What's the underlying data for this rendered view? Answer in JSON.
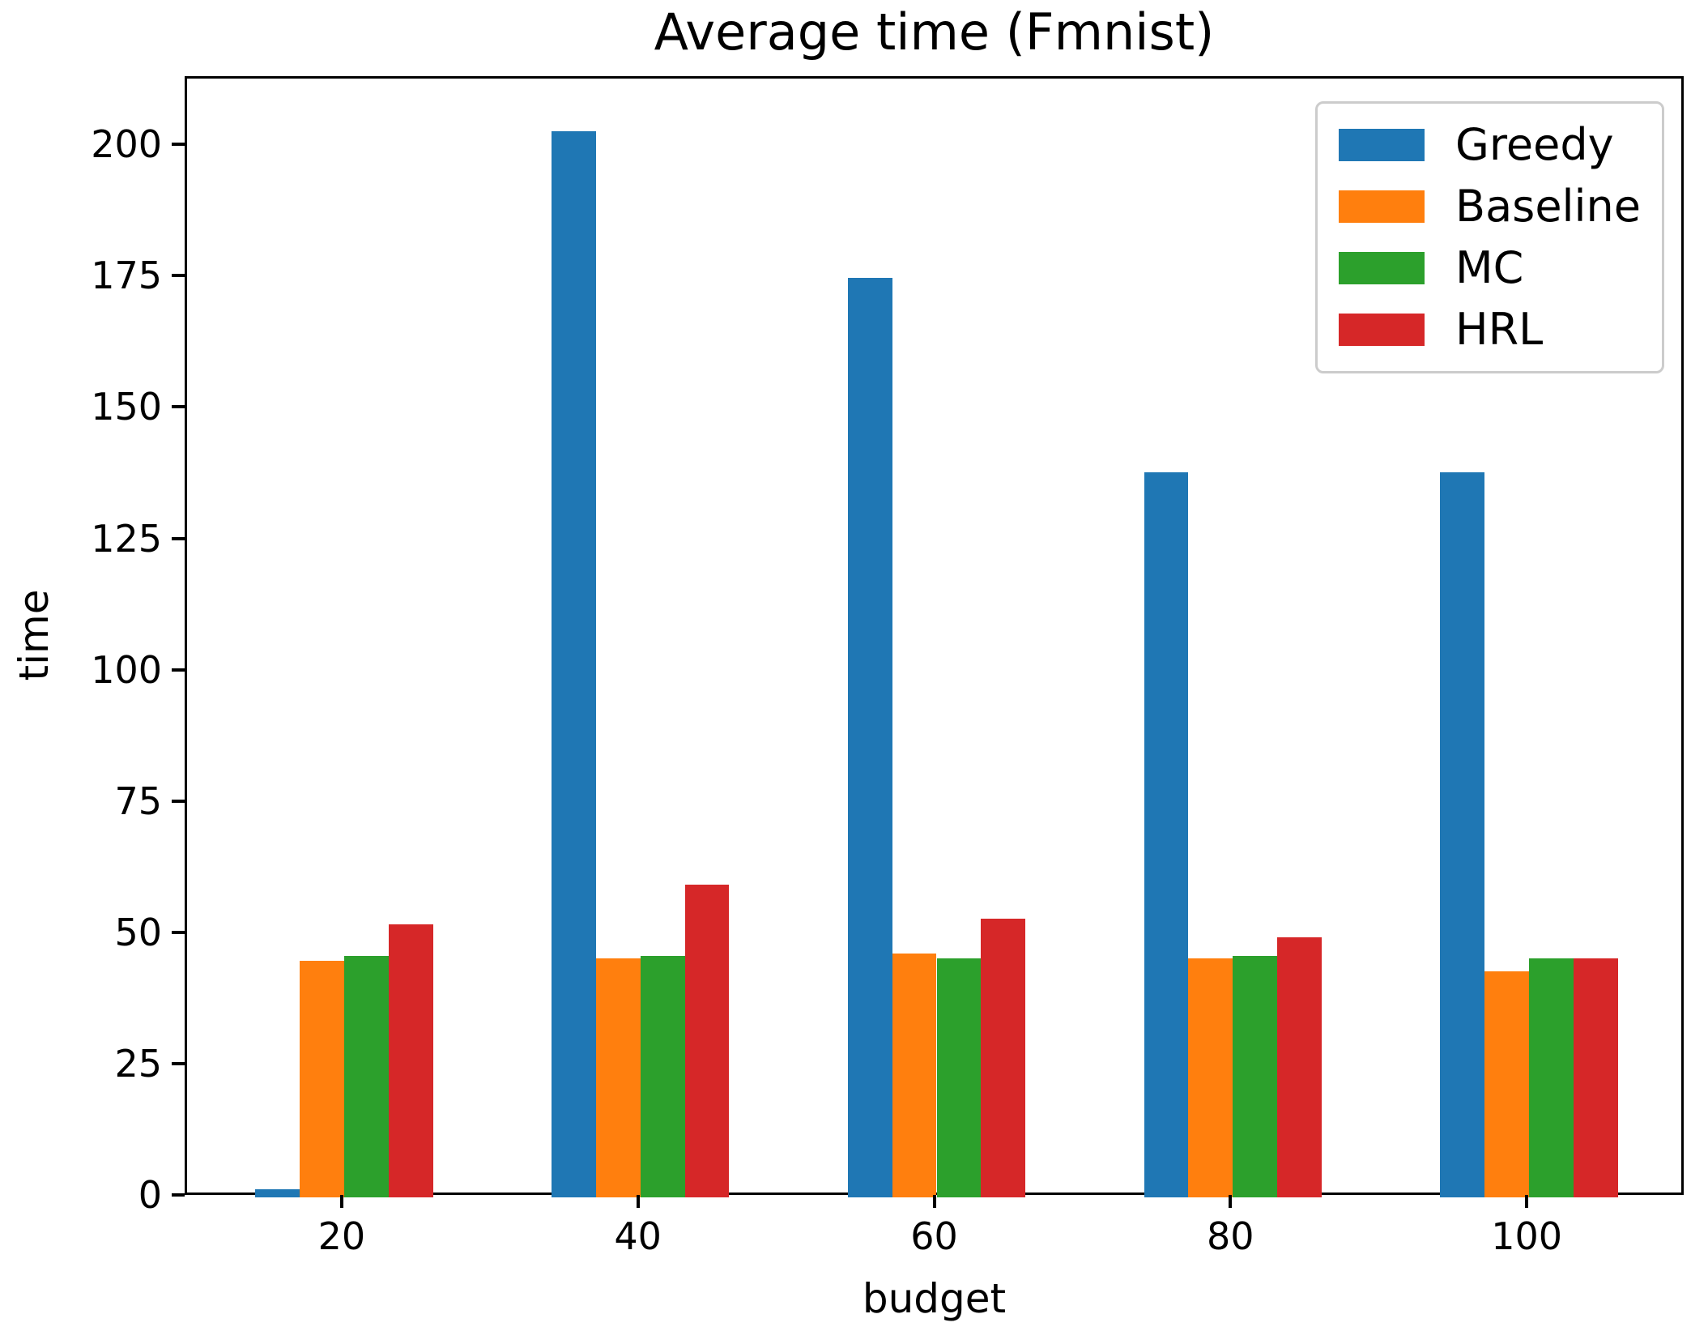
{
  "chart_data": {
    "type": "bar",
    "title": "Average time (Fmnist)",
    "xlabel": "budget",
    "ylabel": "time",
    "categories": [
      20,
      40,
      60,
      80,
      100
    ],
    "series": [
      {
        "name": "Greedy",
        "color": "#1f77b4",
        "values": [
          1.5,
          203,
          175,
          138,
          138
        ]
      },
      {
        "name": "Baseline",
        "color": "#ff7f0e",
        "values": [
          45,
          45.5,
          46.5,
          45.5,
          43
        ]
      },
      {
        "name": "MC",
        "color": "#2ca02c",
        "values": [
          46,
          46,
          45.5,
          46,
          45.5
        ]
      },
      {
        "name": "HRL",
        "color": "#d62728",
        "values": [
          52,
          59.5,
          53,
          49.5,
          45.5
        ]
      }
    ],
    "yticks": [
      0,
      25,
      50,
      75,
      100,
      125,
      150,
      175,
      200
    ],
    "ylim": [
      0,
      213
    ],
    "xlim": [
      9.4,
      110.6
    ],
    "bar_width_units": 3,
    "grid": false,
    "legend_position": "upper right",
    "axis_color": "#000000"
  }
}
